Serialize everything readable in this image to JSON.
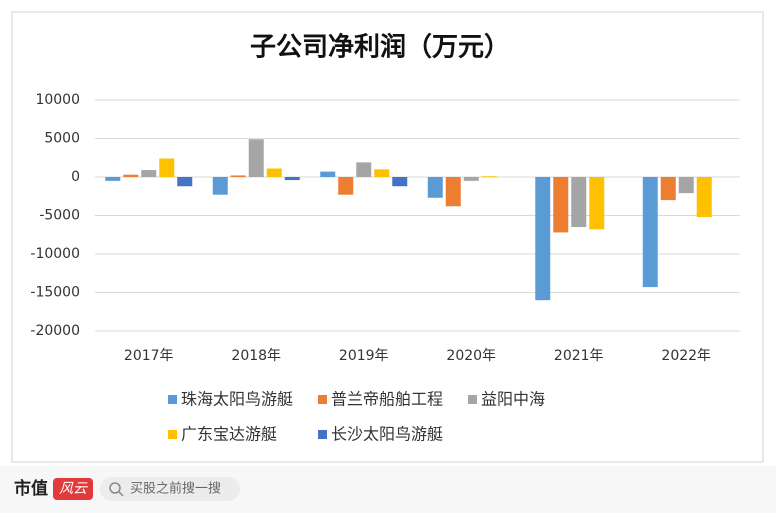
{
  "chart_data": {
    "type": "bar",
    "title": "子公司净利润（万元）",
    "categories": [
      "2017年",
      "2018年",
      "2019年",
      "2020年",
      "2021年",
      "2022年"
    ],
    "series": [
      {
        "name": "珠海太阳鸟游艇",
        "color": "#5b9bd5",
        "values": [
          -500,
          -2300,
          700,
          -2700,
          -16000,
          -14300
        ]
      },
      {
        "name": "普兰帝船舶工程",
        "color": "#ed7d31",
        "values": [
          300,
          200,
          -2300,
          -3800,
          -7200,
          -3000
        ]
      },
      {
        "name": "益阳中海",
        "color": "#a5a5a5",
        "values": [
          900,
          4900,
          1900,
          -500,
          -6500,
          -2100
        ]
      },
      {
        "name": "广东宝达游艇",
        "color": "#ffc000",
        "values": [
          2400,
          1100,
          1000,
          100,
          -6800,
          -5200
        ]
      },
      {
        "name": "长沙太阳鸟游艇",
        "color": "#4472c4",
        "values": [
          -1200,
          -400,
          -1200,
          null,
          null,
          null
        ]
      }
    ],
    "ylim": [
      -20000,
      10000
    ],
    "yticks": [
      10000,
      5000,
      0,
      -5000,
      -10000,
      -15000,
      -20000
    ],
    "grid": true
  },
  "footer": {
    "logo_left": "市值",
    "logo_right": "风云",
    "search": "买股之前搜一搜"
  }
}
